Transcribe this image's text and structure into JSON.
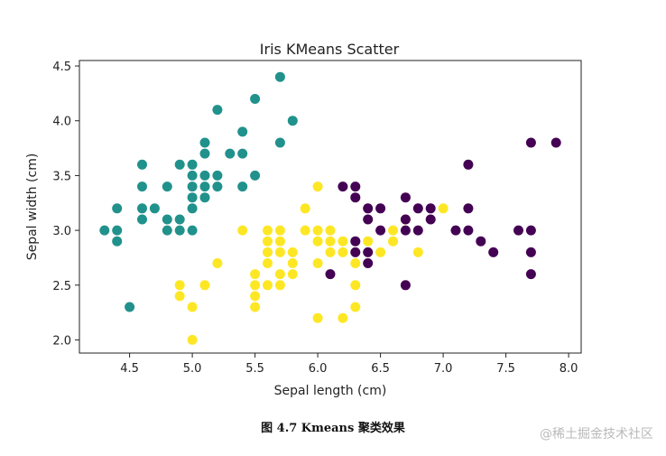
{
  "chart_data": {
    "type": "scatter",
    "title": "Iris KMeans Scatter",
    "xlabel": "Sepal length (cm)",
    "ylabel": "Sepal width (cm)",
    "xlim": [
      4.1,
      8.1
    ],
    "ylim": [
      1.88,
      4.55
    ],
    "xticks": [
      "4.5",
      "5.0",
      "5.5",
      "6.0",
      "6.5",
      "7.0",
      "7.5",
      "8.0"
    ],
    "yticks": [
      "2.0",
      "2.5",
      "3.0",
      "3.5",
      "4.0",
      "4.5"
    ],
    "grid": false,
    "series": [
      {
        "color": "#21918c",
        "points": [
          [
            4.3,
            3.0
          ],
          [
            4.4,
            3.2
          ],
          [
            4.4,
            3.0
          ],
          [
            4.4,
            2.9
          ],
          [
            4.5,
            2.3
          ],
          [
            4.6,
            3.6
          ],
          [
            4.6,
            3.4
          ],
          [
            4.6,
            3.2
          ],
          [
            4.6,
            3.1
          ],
          [
            4.7,
            3.2
          ],
          [
            4.8,
            3.4
          ],
          [
            4.8,
            3.1
          ],
          [
            4.8,
            3.0
          ],
          [
            4.9,
            3.6
          ],
          [
            4.9,
            3.1
          ],
          [
            4.9,
            3.0
          ],
          [
            5.0,
            3.6
          ],
          [
            5.0,
            3.5
          ],
          [
            5.0,
            3.4
          ],
          [
            5.0,
            3.3
          ],
          [
            5.0,
            3.2
          ],
          [
            5.0,
            3.0
          ],
          [
            5.1,
            3.8
          ],
          [
            5.1,
            3.7
          ],
          [
            5.1,
            3.5
          ],
          [
            5.1,
            3.4
          ],
          [
            5.1,
            3.3
          ],
          [
            5.2,
            4.1
          ],
          [
            5.2,
            3.5
          ],
          [
            5.2,
            3.4
          ],
          [
            5.3,
            3.7
          ],
          [
            5.4,
            3.9
          ],
          [
            5.4,
            3.7
          ],
          [
            5.4,
            3.4
          ],
          [
            5.5,
            4.2
          ],
          [
            5.5,
            3.5
          ],
          [
            5.7,
            4.4
          ],
          [
            5.7,
            3.8
          ],
          [
            5.8,
            4.0
          ]
        ]
      },
      {
        "color": "#fde725",
        "points": [
          [
            4.9,
            2.5
          ],
          [
            4.9,
            2.4
          ],
          [
            5.0,
            2.3
          ],
          [
            5.0,
            2.0
          ],
          [
            5.1,
            2.5
          ],
          [
            5.2,
            2.7
          ],
          [
            5.4,
            3.0
          ],
          [
            5.5,
            2.6
          ],
          [
            5.5,
            2.5
          ],
          [
            5.5,
            2.4
          ],
          [
            5.5,
            2.3
          ],
          [
            5.6,
            3.0
          ],
          [
            5.6,
            2.9
          ],
          [
            5.6,
            2.8
          ],
          [
            5.6,
            2.7
          ],
          [
            5.6,
            2.5
          ],
          [
            5.7,
            3.0
          ],
          [
            5.7,
            2.9
          ],
          [
            5.7,
            2.8
          ],
          [
            5.7,
            2.6
          ],
          [
            5.7,
            2.5
          ],
          [
            5.8,
            2.8
          ],
          [
            5.8,
            2.7
          ],
          [
            5.8,
            2.6
          ],
          [
            5.9,
            3.2
          ],
          [
            5.9,
            3.0
          ],
          [
            6.0,
            3.4
          ],
          [
            6.0,
            3.0
          ],
          [
            6.0,
            2.9
          ],
          [
            6.0,
            2.7
          ],
          [
            6.0,
            2.2
          ],
          [
            6.1,
            3.0
          ],
          [
            6.1,
            2.9
          ],
          [
            6.1,
            2.8
          ],
          [
            6.2,
            2.9
          ],
          [
            6.2,
            2.8
          ],
          [
            6.2,
            2.2
          ],
          [
            6.3,
            2.7
          ],
          [
            6.3,
            2.5
          ],
          [
            6.3,
            2.3
          ],
          [
            6.4,
            2.9
          ],
          [
            6.5,
            2.8
          ],
          [
            6.6,
            3.0
          ],
          [
            6.6,
            2.9
          ],
          [
            6.7,
            3.1
          ],
          [
            6.8,
            2.8
          ],
          [
            7.0,
            3.2
          ]
        ]
      },
      {
        "color": "#440154",
        "points": [
          [
            6.1,
            2.6
          ],
          [
            6.2,
            3.4
          ],
          [
            6.3,
            3.4
          ],
          [
            6.3,
            3.3
          ],
          [
            6.3,
            2.9
          ],
          [
            6.3,
            2.8
          ],
          [
            6.4,
            3.2
          ],
          [
            6.4,
            3.1
          ],
          [
            6.4,
            2.8
          ],
          [
            6.4,
            2.7
          ],
          [
            6.5,
            3.2
          ],
          [
            6.5,
            3.0
          ],
          [
            6.7,
            3.3
          ],
          [
            6.7,
            3.1
          ],
          [
            6.7,
            3.0
          ],
          [
            6.7,
            2.5
          ],
          [
            6.8,
            3.2
          ],
          [
            6.8,
            3.0
          ],
          [
            6.9,
            3.2
          ],
          [
            6.9,
            3.1
          ],
          [
            7.1,
            3.0
          ],
          [
            7.2,
            3.6
          ],
          [
            7.2,
            3.2
          ],
          [
            7.2,
            3.0
          ],
          [
            7.3,
            2.9
          ],
          [
            7.4,
            2.8
          ],
          [
            7.6,
            3.0
          ],
          [
            7.7,
            3.8
          ],
          [
            7.7,
            3.0
          ],
          [
            7.7,
            2.8
          ],
          [
            7.7,
            2.6
          ],
          [
            7.9,
            3.8
          ]
        ]
      }
    ]
  },
  "caption": "图 4.7 Kmeans 聚类效果",
  "watermark": "@稀土掘金技术社区"
}
